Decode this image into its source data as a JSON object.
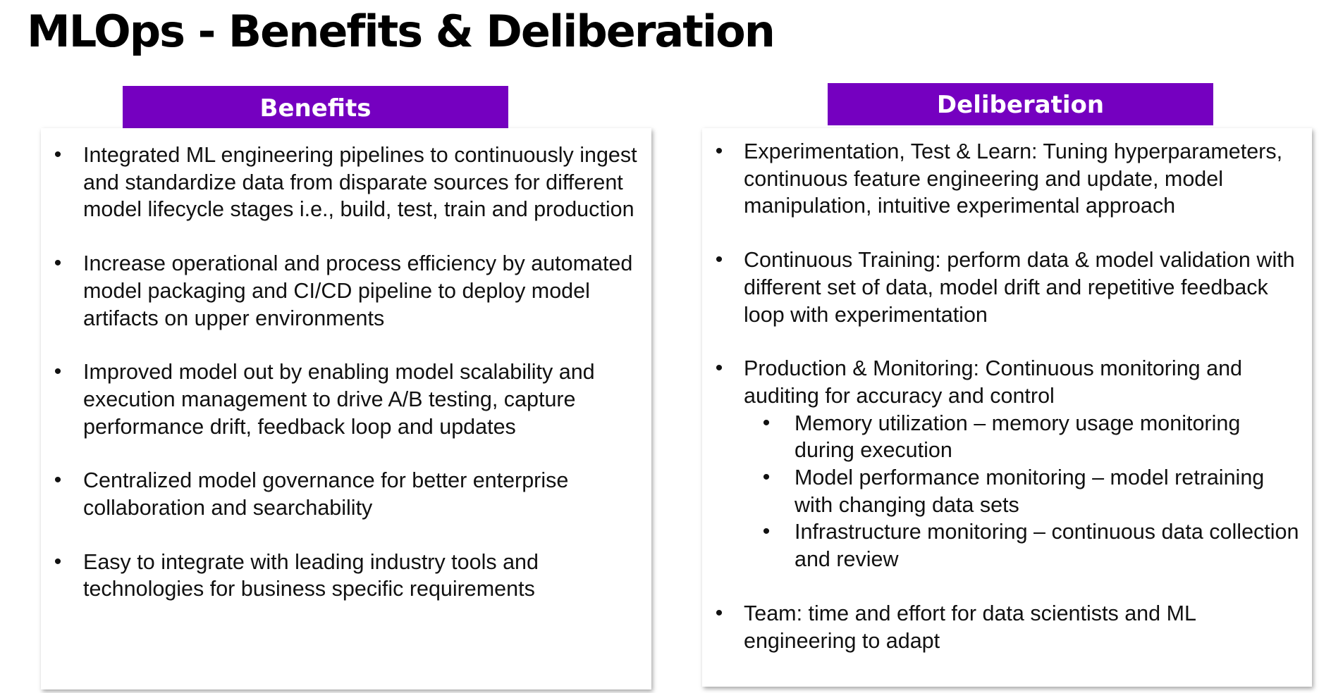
{
  "title": "MLOps - Benefits & Deliberation",
  "benefits": {
    "header": "Benefits",
    "items": [
      {
        "text": "Integrated ML engineering pipelines to continuously ingest and standardize data from disparate sources for different model lifecycle stages i.e., build, test, train and production"
      },
      {
        "text": "Increase operational and process efficiency by automated model packaging and CI/CD pipeline to deploy model artifacts on upper environments"
      },
      {
        "text": "Improved model out by enabling model scalability and execution management to drive A/B testing, capture performance drift, feedback loop and updates"
      },
      {
        "text": "Centralized model governance for better enterprise collaboration and searchability"
      },
      {
        "text": "Easy to integrate with leading industry tools and technologies for business specific requirements"
      }
    ]
  },
  "deliberation": {
    "header": "Deliberation",
    "items": [
      {
        "text": "Experimentation, Test & Learn: Tuning hyperparameters, continuous feature engineering and update, model manipulation, intuitive experimental approach"
      },
      {
        "text": "Continuous Training: perform data & model validation with different set of data, model drift and repetitive feedback loop with experimentation"
      },
      {
        "text": "Production & Monitoring: Continuous monitoring and auditing for accuracy and control",
        "subitems": [
          {
            "text": "Memory utilization – memory usage monitoring during execution"
          },
          {
            "text": "Model performance monitoring – model retraining with changing data sets"
          },
          {
            "text": "Infrastructure monitoring – continuous data collection and review"
          }
        ]
      },
      {
        "text": "Team: time and effort for data scientists and ML engineering to adapt"
      }
    ]
  },
  "bullet_glyph": "•",
  "colors": {
    "accent": "#7500c0",
    "title": "#000000",
    "body_text": "#111111"
  }
}
